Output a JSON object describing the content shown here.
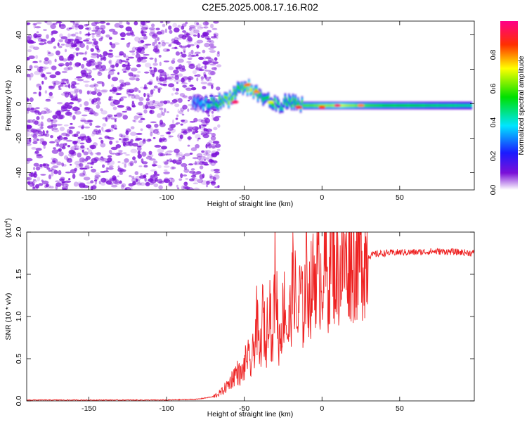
{
  "title": "C2E5.2025.008.17.16.R02",
  "chart_data": [
    {
      "type": "heatmap",
      "xlabel": "Height of straight line (km)",
      "ylabel": "Frequency (Hz)",
      "xlim": [
        -190,
        98
      ],
      "ylim": [
        -50,
        48
      ],
      "x_ticks": [
        -150,
        -100,
        -50,
        0,
        50
      ],
      "y_ticks": [
        -40,
        -20,
        0,
        20,
        40
      ],
      "colorbar": {
        "label": "Normalized spectral amplitude",
        "range": [
          0,
          1
        ],
        "ticks": [
          "0.0",
          "0.2",
          "0.4",
          "0.6",
          "0.8"
        ],
        "tick_values": [
          0,
          0.2,
          0.4,
          0.6,
          0.8
        ],
        "colormap": [
          "#ffffff",
          "#7b10d8",
          "#1b1bff",
          "#00e5ff",
          "#00e000",
          "#ffff00",
          "#ff3000",
          "#ff0088"
        ]
      },
      "noise_region": {
        "x_from": -190,
        "x_to": -69,
        "color": "#7b10d8"
      },
      "signal_track": [
        {
          "x": -83,
          "f": 0,
          "a": 0.3
        },
        {
          "x": -78,
          "f": 0,
          "a": 0.35
        },
        {
          "x": -72,
          "f": 0.5,
          "a": 0.45
        },
        {
          "x": -66,
          "f": 1,
          "a": 0.55
        },
        {
          "x": -60,
          "f": 3,
          "a": 0.65
        },
        {
          "x": -55,
          "f": 8,
          "a": 0.55
        },
        {
          "x": -50,
          "f": 10,
          "a": 0.6
        },
        {
          "x": -46,
          "f": 9,
          "a": 0.7
        },
        {
          "x": -42,
          "f": 6,
          "a": 0.6
        },
        {
          "x": -37,
          "f": 3,
          "a": 0.5
        },
        {
          "x": -32,
          "f": 1,
          "a": 0.55
        },
        {
          "x": -27,
          "f": -2,
          "a": 0.45
        },
        {
          "x": -22,
          "f": 2,
          "a": 0.5
        },
        {
          "x": -17,
          "f": 0,
          "a": 0.55
        },
        {
          "x": -12,
          "f": -1,
          "a": 0.6
        },
        {
          "x": -6,
          "f": -1,
          "a": 0.6
        },
        {
          "x": 0,
          "f": -1,
          "a": 0.65
        },
        {
          "x": 6,
          "f": -1,
          "a": 0.65
        },
        {
          "x": 12,
          "f": -1,
          "a": 0.7
        },
        {
          "x": 25,
          "f": -1,
          "a": 0.6
        },
        {
          "x": 40,
          "f": -1,
          "a": 0.55
        },
        {
          "x": 55,
          "f": -1,
          "a": 0.55
        },
        {
          "x": 70,
          "f": -1,
          "a": 0.5
        },
        {
          "x": 85,
          "f": -1,
          "a": 0.48
        },
        {
          "x": 97,
          "f": -1,
          "a": 0.45
        }
      ],
      "hot_spots": [
        {
          "x": -56,
          "f": 1,
          "a": 0.95
        },
        {
          "x": -48,
          "f": 11,
          "a": 0.82
        },
        {
          "x": -42,
          "f": 7,
          "a": 0.8
        },
        {
          "x": -33,
          "f": 1,
          "a": 0.7
        },
        {
          "x": -15,
          "f": -2,
          "a": 0.9
        },
        {
          "x": 0,
          "f": -2,
          "a": 0.85
        },
        {
          "x": 10,
          "f": -1,
          "a": 0.95
        },
        {
          "x": 25,
          "f": -1,
          "a": 0.8
        }
      ]
    },
    {
      "type": "line",
      "xlabel": "Height of straight line (km)",
      "ylabel": "SNR (10 * v/v)",
      "multiplier_label": "(x10",
      "multiplier_exp": "4",
      "multiplier_close": ")",
      "xlim": [
        -190,
        98
      ],
      "ylim": [
        0,
        2.0
      ],
      "x_ticks": [
        -150,
        -100,
        -50,
        0,
        50
      ],
      "y_ticks": [
        "0.0",
        "0.5",
        "1.0",
        "1.5",
        "2.0"
      ],
      "y_tick_values": [
        0,
        0.5,
        1.0,
        1.5,
        2.0
      ],
      "color": "#ee2222",
      "series": [
        {
          "x": [
            -190,
            -150,
            -100,
            -80,
            -70,
            -65,
            -60,
            -55,
            -52,
            -50,
            -48,
            -46,
            -44,
            -42,
            -40,
            -38,
            -36,
            -34,
            -32,
            -30,
            -28,
            -26,
            -24,
            -22,
            -20,
            -18,
            -16,
            -14,
            -12,
            -10,
            -8,
            -6,
            -4,
            -2,
            0,
            2,
            4,
            6,
            8,
            10,
            12,
            14,
            16,
            18,
            20,
            22,
            24,
            26,
            28,
            30,
            35,
            40,
            50,
            60,
            70,
            80,
            90,
            98
          ],
          "y": [
            0.01,
            0.01,
            0.01,
            0.02,
            0.05,
            0.1,
            0.2,
            0.35,
            0.3,
            0.4,
            0.55,
            0.4,
            0.6,
            0.95,
            0.5,
            1.05,
            0.6,
            1.4,
            0.55,
            1.65,
            0.7,
            0.9,
            1.2,
            0.75,
            1.1,
            1.55,
            0.85,
            1.3,
            1.0,
            1.55,
            1.25,
            1.4,
            1.55,
            1.45,
            1.5,
            1.65,
            1.35,
            1.95,
            1.55,
            1.5,
            1.55,
            1.6,
            1.65,
            1.7,
            1.62,
            1.68,
            1.66,
            1.7,
            1.72,
            1.72,
            1.74,
            1.75,
            1.76,
            1.76,
            1.77,
            1.77,
            1.76,
            1.75
          ]
        }
      ]
    }
  ]
}
